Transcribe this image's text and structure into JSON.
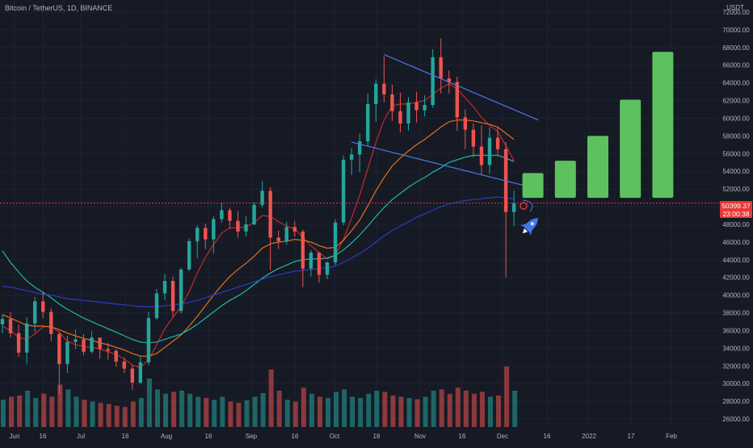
{
  "header": {
    "symbol_title": "Bitcoin / TetherUS, 1D, BINANCE"
  },
  "price_axis": {
    "currency": "USDT",
    "ticks": [
      "72000.00",
      "70000.00",
      "68000.00",
      "66000.00",
      "64000.00",
      "62000.00",
      "60000.00",
      "58000.00",
      "56000.00",
      "54000.00",
      "52000.00",
      "50000.00",
      "48000.00",
      "46000.00",
      "44000.00",
      "42000.00",
      "40000.00",
      "38000.00",
      "36000.00",
      "34000.00",
      "32000.00",
      "30000.00",
      "28000.00",
      "26000.00"
    ],
    "last_price": "50399.37",
    "countdown": "23:00:38"
  },
  "time_axis": {
    "labels": [
      "Jun",
      "16",
      "Jul",
      "16",
      "Aug",
      "16",
      "Sep",
      "16",
      "Oct",
      "16",
      "Nov",
      "16",
      "Dec",
      "16",
      "2022",
      "17",
      "Feb"
    ]
  },
  "colors": {
    "background": "#161a25",
    "up": "#26a69a",
    "down": "#ef5350",
    "projection_bar": "#5cc15e",
    "trendline": "#4c78e6",
    "ma_red": "#c62828",
    "ma_orange": "#e2711d",
    "ma_teal": "#21b8a6",
    "ma_blue": "#2d3bbf",
    "price_line": "#e53935"
  },
  "chart_data": {
    "type": "candlestick",
    "y_range": [
      25000,
      73500
    ],
    "candles": [
      {
        "d": "Jun 1",
        "o": 36700,
        "h": 37800,
        "l": 35700,
        "c": 37300
      },
      {
        "d": "Jun 4",
        "o": 37300,
        "h": 38100,
        "l": 35200,
        "c": 35700
      },
      {
        "d": "Jun 7",
        "o": 35700,
        "h": 36700,
        "l": 33000,
        "c": 33500
      },
      {
        "d": "Jun 10",
        "o": 33500,
        "h": 37500,
        "l": 32200,
        "c": 36800
      },
      {
        "d": "Jun 13",
        "o": 36800,
        "h": 39800,
        "l": 35800,
        "c": 39300
      },
      {
        "d": "Jun 16",
        "o": 39300,
        "h": 40400,
        "l": 37400,
        "c": 38100
      },
      {
        "d": "Jun 19",
        "o": 38100,
        "h": 38500,
        "l": 34800,
        "c": 35600
      },
      {
        "d": "Jun 22",
        "o": 35600,
        "h": 35900,
        "l": 28800,
        "c": 32200
      },
      {
        "d": "Jun 25",
        "o": 32200,
        "h": 35400,
        "l": 31200,
        "c": 34700
      },
      {
        "d": "Jun 28",
        "o": 34700,
        "h": 36100,
        "l": 33900,
        "c": 35000
      },
      {
        "d": "Jul 1",
        "o": 35000,
        "h": 35600,
        "l": 33200,
        "c": 33600
      },
      {
        "d": "Jul 4",
        "o": 33600,
        "h": 35900,
        "l": 33400,
        "c": 35200
      },
      {
        "d": "Jul 7",
        "o": 35200,
        "h": 35100,
        "l": 32800,
        "c": 33900
      },
      {
        "d": "Jul 10",
        "o": 33900,
        "h": 34600,
        "l": 32700,
        "c": 33700
      },
      {
        "d": "Jul 13",
        "o": 33700,
        "h": 33900,
        "l": 31900,
        "c": 32500
      },
      {
        "d": "Jul 16",
        "o": 32500,
        "h": 32900,
        "l": 31200,
        "c": 31700
      },
      {
        "d": "Jul 19",
        "o": 31700,
        "h": 32100,
        "l": 29300,
        "c": 30100
      },
      {
        "d": "Jul 22",
        "o": 30100,
        "h": 33100,
        "l": 29900,
        "c": 32400
      },
      {
        "d": "Jul 25",
        "o": 32400,
        "h": 38100,
        "l": 32100,
        "c": 37400
      },
      {
        "d": "Jul 28",
        "o": 37400,
        "h": 40700,
        "l": 37200,
        "c": 40200
      },
      {
        "d": "Jul 31",
        "o": 40200,
        "h": 42400,
        "l": 39400,
        "c": 41600
      },
      {
        "d": "Aug 3",
        "o": 41600,
        "h": 42100,
        "l": 37600,
        "c": 38200
      },
      {
        "d": "Aug 6",
        "o": 38200,
        "h": 43100,
        "l": 37900,
        "c": 42900
      },
      {
        "d": "Aug 9",
        "o": 42900,
        "h": 46400,
        "l": 42700,
        "c": 46100
      },
      {
        "d": "Aug 12",
        "o": 46100,
        "h": 47900,
        "l": 44200,
        "c": 47600
      },
      {
        "d": "Aug 15",
        "o": 47600,
        "h": 48100,
        "l": 45200,
        "c": 46300
      },
      {
        "d": "Aug 18",
        "o": 46300,
        "h": 48900,
        "l": 44700,
        "c": 48600
      },
      {
        "d": "Aug 21",
        "o": 48600,
        "h": 50400,
        "l": 48200,
        "c": 49600
      },
      {
        "d": "Aug 24",
        "o": 49600,
        "h": 49900,
        "l": 47500,
        "c": 48400
      },
      {
        "d": "Aug 27",
        "o": 48400,
        "h": 49500,
        "l": 46500,
        "c": 47200
      },
      {
        "d": "Aug 30",
        "o": 47200,
        "h": 48900,
        "l": 46600,
        "c": 48000
      },
      {
        "d": "Sep 2",
        "o": 48000,
        "h": 50500,
        "l": 47900,
        "c": 50200
      },
      {
        "d": "Sep 5",
        "o": 50200,
        "h": 52900,
        "l": 49900,
        "c": 51800
      },
      {
        "d": "Sep 8",
        "o": 51800,
        "h": 52200,
        "l": 42800,
        "c": 46500
      },
      {
        "d": "Sep 11",
        "o": 46500,
        "h": 47300,
        "l": 45200,
        "c": 46100
      },
      {
        "d": "Sep 14",
        "o": 46100,
        "h": 48300,
        "l": 45700,
        "c": 47700
      },
      {
        "d": "Sep 17",
        "o": 47700,
        "h": 48400,
        "l": 46600,
        "c": 47200
      },
      {
        "d": "Sep 20",
        "o": 47200,
        "h": 47400,
        "l": 40900,
        "c": 43000
      },
      {
        "d": "Sep 23",
        "o": 43000,
        "h": 45100,
        "l": 42100,
        "c": 44800
      },
      {
        "d": "Sep 26",
        "o": 44800,
        "h": 44900,
        "l": 41400,
        "c": 42300
      },
      {
        "d": "Sep 29",
        "o": 42300,
        "h": 43800,
        "l": 41800,
        "c": 43700
      },
      {
        "d": "Oct 2",
        "o": 43700,
        "h": 48600,
        "l": 43400,
        "c": 48200
      },
      {
        "d": "Oct 5",
        "o": 48200,
        "h": 55800,
        "l": 47900,
        "c": 55300
      },
      {
        "d": "Oct 8",
        "o": 55300,
        "h": 56600,
        "l": 53600,
        "c": 55900
      },
      {
        "d": "Oct 11",
        "o": 55900,
        "h": 58300,
        "l": 53900,
        "c": 57400
      },
      {
        "d": "Oct 14",
        "o": 57400,
        "h": 62800,
        "l": 56900,
        "c": 61600
      },
      {
        "d": "Oct 17",
        "o": 61600,
        "h": 64400,
        "l": 59600,
        "c": 63900
      },
      {
        "d": "Oct 20",
        "o": 63900,
        "h": 67000,
        "l": 61800,
        "c": 62700
      },
      {
        "d": "Oct 23",
        "o": 62700,
        "h": 63800,
        "l": 59700,
        "c": 60800
      },
      {
        "d": "Oct 26",
        "o": 60800,
        "h": 62900,
        "l": 58400,
        "c": 59400
      },
      {
        "d": "Oct 29",
        "o": 59400,
        "h": 62400,
        "l": 58600,
        "c": 61800
      },
      {
        "d": "Nov 1",
        "o": 61800,
        "h": 63000,
        "l": 59500,
        "c": 60900
      },
      {
        "d": "Nov 4",
        "o": 60900,
        "h": 62600,
        "l": 60200,
        "c": 61500
      },
      {
        "d": "Nov 7",
        "o": 61500,
        "h": 67800,
        "l": 61200,
        "c": 66900
      },
      {
        "d": "Nov 10",
        "o": 66900,
        "h": 69000,
        "l": 62800,
        "c": 64500
      },
      {
        "d": "Nov 13",
        "o": 64500,
        "h": 65400,
        "l": 62800,
        "c": 64100
      },
      {
        "d": "Nov 16",
        "o": 64100,
        "h": 64700,
        "l": 58600,
        "c": 60100
      },
      {
        "d": "Nov 19",
        "o": 60100,
        "h": 61000,
        "l": 56500,
        "c": 58700
      },
      {
        "d": "Nov 22",
        "o": 58700,
        "h": 59400,
        "l": 55600,
        "c": 56800
      },
      {
        "d": "Nov 25",
        "o": 56800,
        "h": 59200,
        "l": 53600,
        "c": 54700
      },
      {
        "d": "Nov 28",
        "o": 54700,
        "h": 59000,
        "l": 53700,
        "c": 57800
      },
      {
        "d": "Dec 1",
        "o": 57800,
        "h": 59000,
        "l": 55800,
        "c": 56500
      },
      {
        "d": "Dec 4",
        "o": 56500,
        "h": 57300,
        "l": 42000,
        "c": 49400
      },
      {
        "d": "Dec 7",
        "o": 49400,
        "h": 51800,
        "l": 47800,
        "c": 50400
      }
    ],
    "moving_averages": [
      {
        "color": "red",
        "values": [
          36500,
          36000,
          35200,
          35000,
          35600,
          36400,
          36500,
          35800,
          34800,
          34400,
          34200,
          34100,
          33900,
          33600,
          33300,
          32800,
          32100,
          31800,
          32700,
          34400,
          36200,
          37500,
          38700,
          40400,
          42500,
          44300,
          45700,
          47000,
          47600,
          47600,
          47700,
          48200,
          49000,
          48900,
          48300,
          47800,
          47500,
          46500,
          45600,
          44800,
          44100,
          44500,
          46300,
          48700,
          51300,
          54300,
          57300,
          59800,
          61400,
          61600,
          61600,
          61800,
          62000,
          62700,
          63400,
          63900,
          63300,
          62300,
          61300,
          60100,
          59200,
          58500,
          56900,
          55200
        ]
      },
      {
        "color": "orange",
        "values": [
          37800,
          37400,
          37000,
          36600,
          36500,
          36500,
          36400,
          36100,
          35700,
          35400,
          35100,
          34900,
          34600,
          34400,
          34100,
          33800,
          33400,
          33100,
          33100,
          33400,
          34100,
          34800,
          35500,
          36500,
          37600,
          38800,
          40000,
          41100,
          42100,
          42900,
          43600,
          44400,
          45300,
          45800,
          46000,
          46100,
          46300,
          46200,
          46000,
          45600,
          45300,
          45400,
          46200,
          47300,
          48500,
          50100,
          51800,
          53300,
          54600,
          55500,
          56300,
          57000,
          57600,
          58300,
          59000,
          59600,
          59800,
          59800,
          59700,
          59500,
          59300,
          59000,
          58300,
          57600
        ]
      },
      {
        "color": "teal",
        "values": [
          45000,
          43700,
          42600,
          41600,
          40900,
          40300,
          39700,
          39000,
          38400,
          37900,
          37400,
          37000,
          36600,
          36200,
          35800,
          35400,
          35000,
          34700,
          34600,
          34700,
          35000,
          35300,
          35600,
          36100,
          36700,
          37400,
          38100,
          38800,
          39400,
          39900,
          40500,
          41200,
          41900,
          42500,
          43000,
          43400,
          43800,
          44000,
          44100,
          44100,
          44200,
          44500,
          45100,
          45900,
          46800,
          47800,
          48900,
          49900,
          50800,
          51500,
          52200,
          52800,
          53300,
          53900,
          54400,
          55000,
          55300,
          55600,
          55800,
          55800,
          55800,
          55800,
          55500,
          55100
        ]
      },
      {
        "color": "blue",
        "values": [
          41000,
          40900,
          40700,
          40500,
          40300,
          40100,
          40000,
          39800,
          39600,
          39500,
          39400,
          39300,
          39200,
          39100,
          39000,
          38900,
          38800,
          38700,
          38700,
          38700,
          38800,
          38900,
          39000,
          39200,
          39400,
          39700,
          40000,
          40300,
          40600,
          40900,
          41200,
          41500,
          41800,
          42100,
          42300,
          42500,
          42700,
          42800,
          42900,
          43000,
          43100,
          43300,
          43700,
          44200,
          44700,
          45300,
          46000,
          46700,
          47300,
          47800,
          48300,
          48800,
          49200,
          49600,
          50000,
          50300,
          50500,
          50700,
          50800,
          50900,
          51000,
          51100,
          51000,
          50900
        ]
      }
    ],
    "volume": [
      0.45,
      0.5,
      0.52,
      0.6,
      0.48,
      0.55,
      0.5,
      0.7,
      0.62,
      0.5,
      0.45,
      0.42,
      0.4,
      0.38,
      0.35,
      0.33,
      0.42,
      0.48,
      0.8,
      0.62,
      0.55,
      0.58,
      0.6,
      0.55,
      0.5,
      0.48,
      0.45,
      0.5,
      0.42,
      0.4,
      0.44,
      0.5,
      0.56,
      0.95,
      0.6,
      0.45,
      0.42,
      0.65,
      0.55,
      0.5,
      0.48,
      0.58,
      0.62,
      0.5,
      0.48,
      0.55,
      0.6,
      0.58,
      0.52,
      0.5,
      0.48,
      0.46,
      0.5,
      0.6,
      0.62,
      0.55,
      0.65,
      0.6,
      0.55,
      0.58,
      0.5,
      0.52,
      1.0,
      0.6
    ],
    "trendlines": [
      {
        "from": {
          "d": "Oct 20",
          "p": 67200
        },
        "to": {
          "d": "Dec 16",
          "p": 59800
        }
      },
      {
        "from": {
          "d": "Oct 8",
          "p": 57300
        },
        "to": {
          "d": "Dec 12",
          "p": 52300
        }
      }
    ],
    "projection_bars": [
      {
        "d": "Dec 14",
        "top": 53800,
        "bottom": 51000
      },
      {
        "d": "Dec 26",
        "top": 55200,
        "bottom": 51000
      },
      {
        "d": "Jan 7",
        "top": 58000,
        "bottom": 51000
      },
      {
        "d": "Jan 19",
        "top": 62100,
        "bottom": 51000
      },
      {
        "d": "Jan 31",
        "top": 67500,
        "bottom": 51000
      }
    ]
  }
}
